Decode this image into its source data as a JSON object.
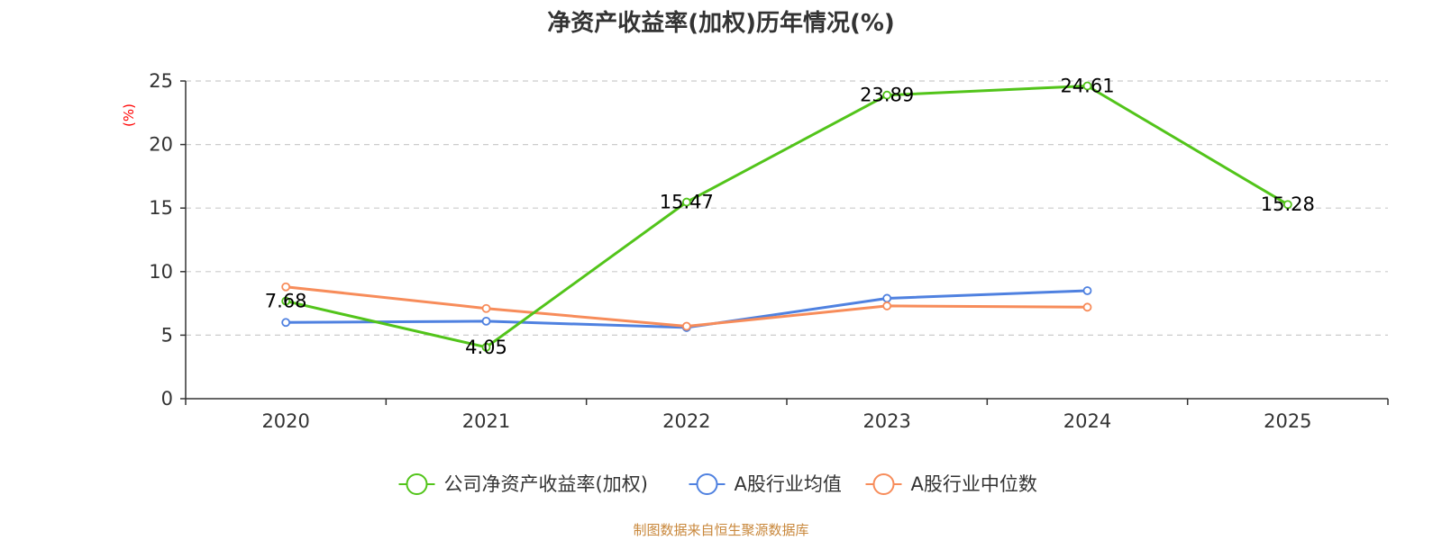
{
  "chart_data": {
    "type": "line",
    "title": "净资产收益率(加权)历年情况(%)",
    "ylabel": "(%)",
    "ylim": [
      0,
      25
    ],
    "yticks": [
      0,
      5,
      10,
      15,
      20,
      25
    ],
    "grid": true,
    "legend_position": "bottom",
    "categories": [
      "2020",
      "2021",
      "2022",
      "2023",
      "2024",
      "2025"
    ],
    "series": [
      {
        "name": "公司净资产收益率(加权)",
        "color": "#52c41a",
        "values": [
          7.68,
          4.05,
          15.47,
          23.89,
          24.61,
          15.28
        ],
        "labels": [
          "7.68",
          "4.05",
          "15.47",
          "23.89",
          "24.61",
          "15.28"
        ]
      },
      {
        "name": "A股行业均值",
        "color": "#4f81e0",
        "values": [
          6.0,
          6.1,
          5.6,
          7.9,
          8.5,
          null
        ]
      },
      {
        "name": "A股行业中位数",
        "color": "#f78c5a",
        "values": [
          8.8,
          7.1,
          5.7,
          7.3,
          7.2,
          null
        ]
      }
    ],
    "ylabel_color": "#ff0000"
  },
  "source": {
    "text": "制图数据来自恒生聚源数据库",
    "color": "#c8873b"
  }
}
